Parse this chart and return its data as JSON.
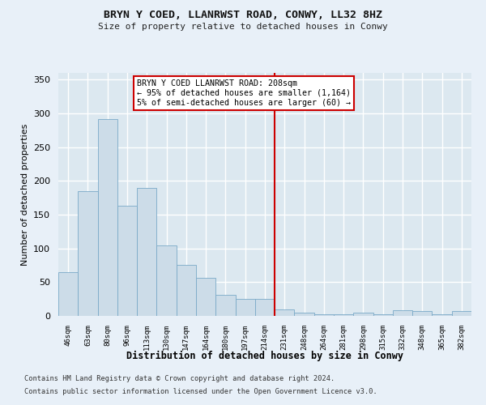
{
  "title1": "BRYN Y COED, LLANRWST ROAD, CONWY, LL32 8HZ",
  "title2": "Size of property relative to detached houses in Conwy",
  "xlabel": "Distribution of detached houses by size in Conwy",
  "ylabel": "Number of detached properties",
  "bar_values": [
    65,
    185,
    292,
    163,
    190,
    104,
    76,
    57,
    31,
    25,
    25,
    10,
    5,
    3,
    3,
    5,
    3,
    8,
    7,
    2,
    7
  ],
  "bar_labels": [
    "46sqm",
    "63sqm",
    "80sqm",
    "96sqm",
    "113sqm",
    "130sqm",
    "147sqm",
    "164sqm",
    "180sqm",
    "197sqm",
    "214sqm",
    "231sqm",
    "248sqm",
    "264sqm",
    "281sqm",
    "298sqm",
    "315sqm",
    "332sqm",
    "348sqm",
    "365sqm",
    "382sqm"
  ],
  "bar_color": "#ccdce8",
  "bar_edge_color": "#7aaac8",
  "vline_color": "#cc0000",
  "vline_x_idx": 10.5,
  "annotation_text": "BRYN Y COED LLANRWST ROAD: 208sqm\n← 95% of detached houses are smaller (1,164)\n5% of semi-detached houses are larger (60) →",
  "annotation_box_color": "#ffffff",
  "annotation_box_edge": "#cc0000",
  "ylim": [
    0,
    360
  ],
  "yticks": [
    0,
    50,
    100,
    150,
    200,
    250,
    300,
    350
  ],
  "bg_color": "#dce8f0",
  "fig_bg_color": "#e8f0f8",
  "grid_color": "#ffffff",
  "footnote1": "Contains HM Land Registry data © Crown copyright and database right 2024.",
  "footnote2": "Contains public sector information licensed under the Open Government Licence v3.0."
}
